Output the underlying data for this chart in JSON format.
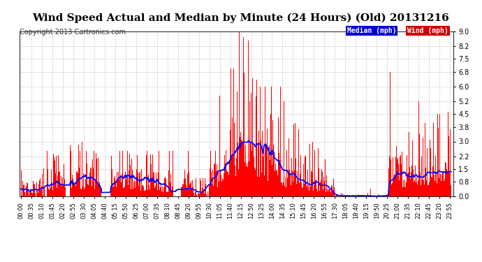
{
  "title": "Wind Speed Actual and Median by Minute (24 Hours) (Old) 20131216",
  "copyright": "Copyright 2013 Cartronics.com",
  "legend_median_label": "Median (mph)",
  "legend_wind_label": "Wind (mph)",
  "legend_median_bg": "#0000cc",
  "legend_wind_bg": "#cc0000",
  "legend_text_color": "#ffffff",
  "title_fontsize": 11,
  "copyright_fontsize": 7,
  "bg_color": "#ffffff",
  "plot_bg_color": "#ffffff",
  "grid_color": "#bbbbbb",
  "bar_color": "#ff0000",
  "line_color": "#0000ff",
  "line_width": 1.2,
  "ylim": [
    0.0,
    9.0
  ],
  "yticks": [
    0.0,
    0.8,
    1.5,
    2.2,
    3.0,
    3.8,
    4.5,
    5.2,
    6.0,
    6.8,
    7.5,
    8.2,
    9.0
  ],
  "ytick_labels": [
    "0.0",
    "0.8",
    "1.5",
    "2.2",
    "3.0",
    "3.8",
    "4.5",
    "5.2",
    "6.0",
    "6.8",
    "7.5",
    "8.2",
    "9.0"
  ],
  "n_minutes": 1440
}
